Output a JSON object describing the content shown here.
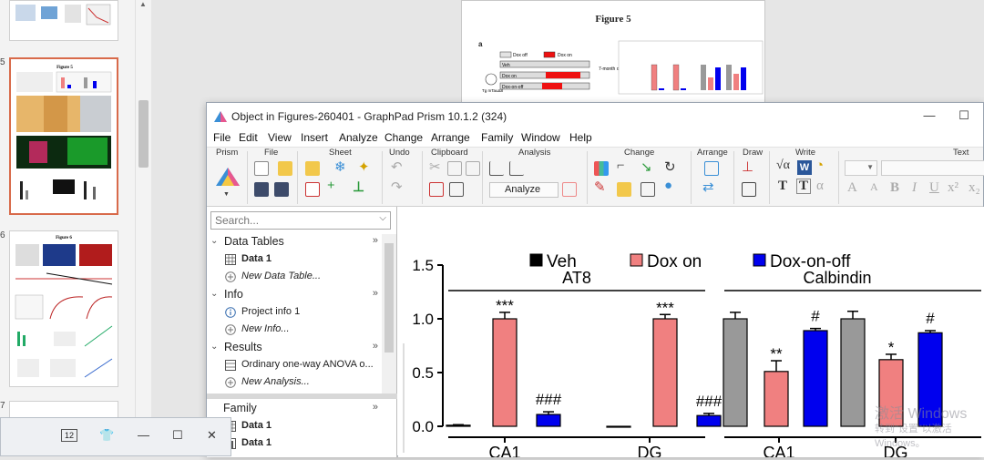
{
  "slide_pane": {
    "slide_numbers": [
      "5",
      "6",
      "7"
    ],
    "selected_slide": "5"
  },
  "slide_page": {
    "title": "Figure 5",
    "panel_label": "a",
    "mini_legend": [
      "Dox off",
      "Dox on"
    ],
    "mini_rows": [
      "Veh",
      "Dox on",
      "Dox-on-off"
    ],
    "mini_note": "7-month old mice",
    "mini_tg": "Tg mTauΔ8"
  },
  "prism_window": {
    "title": "Object in Figures-260401 - GraphPad Prism 10.1.2 (324)",
    "menu": [
      "File",
      "Edit",
      "View",
      "Insert",
      "Analyze",
      "Change",
      "Arrange",
      "Family",
      "Window",
      "Help"
    ],
    "toolbar_groups": [
      "Prism",
      "File",
      "Sheet",
      "Undo",
      "Clipboard",
      "Analysis",
      "Change",
      "Arrange",
      "Draw",
      "Write",
      "Text"
    ],
    "analyze_label": "Analyze",
    "write_labels": [
      "√α",
      "W"
    ],
    "text_icons": [
      "T",
      "T",
      "α",
      "A",
      "A",
      "B",
      "I",
      "U",
      "x²",
      "x₂"
    ]
  },
  "navigator": {
    "search_placeholder": "Search...",
    "sections": [
      {
        "label": "Data Tables",
        "items": [
          {
            "label": "Data 1",
            "style": "bold"
          },
          {
            "label": "New Data Table...",
            "style": "italic"
          }
        ]
      },
      {
        "label": "Info",
        "items": [
          {
            "label": "Project info 1",
            "style": "normal"
          },
          {
            "label": "New Info...",
            "style": "italic"
          }
        ]
      },
      {
        "label": "Results",
        "items": [
          {
            "label": "Ordinary one-way ANOVA o...",
            "style": "normal"
          },
          {
            "label": "New Analysis...",
            "style": "italic"
          }
        ]
      },
      {
        "label": "Family",
        "items": [
          {
            "label": "Data 1",
            "style": "bold"
          },
          {
            "label": "Data 1",
            "style": "bold"
          }
        ]
      }
    ]
  },
  "floating_window": {
    "zoom": "12"
  },
  "watermark": {
    "line1": "激活 Windows",
    "line2": "转到\"设置\"以激活 Windows。"
  },
  "colors": {
    "veh": "#000000",
    "dox_on": "#f08080",
    "dox_on_off": "#0000ee",
    "calb_veh": "#999999",
    "selected_border": "#d86a4a"
  },
  "chart_data": {
    "type": "bar",
    "legend": [
      "Veh",
      "Dox on",
      "Dox-on-off"
    ],
    "group_titles": [
      "AT8",
      "Calbindin"
    ],
    "ylim": [
      0,
      1.5
    ],
    "yticks": [
      "0.0",
      "0.5",
      "1.0",
      "1.5"
    ],
    "groups": [
      {
        "title": "AT8",
        "categories": [
          "CA1",
          "DG"
        ],
        "series": [
          {
            "name": "Veh",
            "values": [
              0.01,
              0.0
            ],
            "errors": [
              0.005,
              0.0
            ],
            "labels": [
              "",
              ""
            ]
          },
          {
            "name": "Dox on",
            "values": [
              1.0,
              1.0
            ],
            "errors": [
              0.06,
              0.04
            ],
            "labels": [
              "***",
              "***"
            ]
          },
          {
            "name": "Dox-on-off",
            "values": [
              0.11,
              0.1
            ],
            "errors": [
              0.025,
              0.02
            ],
            "labels": [
              "###",
              "###"
            ]
          }
        ]
      },
      {
        "title": "Calbindin",
        "categories": [
          "CA1",
          "DG"
        ],
        "series": [
          {
            "name": "Veh",
            "values": [
              1.0,
              1.0
            ],
            "errors": [
              0.06,
              0.07
            ],
            "labels": [
              "",
              ""
            ]
          },
          {
            "name": "Dox on",
            "values": [
              0.51,
              0.62
            ],
            "errors": [
              0.1,
              0.05
            ],
            "labels": [
              "**",
              "*"
            ]
          },
          {
            "name": "Dox-on-off",
            "values": [
              0.89,
              0.87
            ],
            "errors": [
              0.02,
              0.02
            ],
            "labels": [
              "#",
              "#"
            ]
          }
        ]
      }
    ]
  }
}
